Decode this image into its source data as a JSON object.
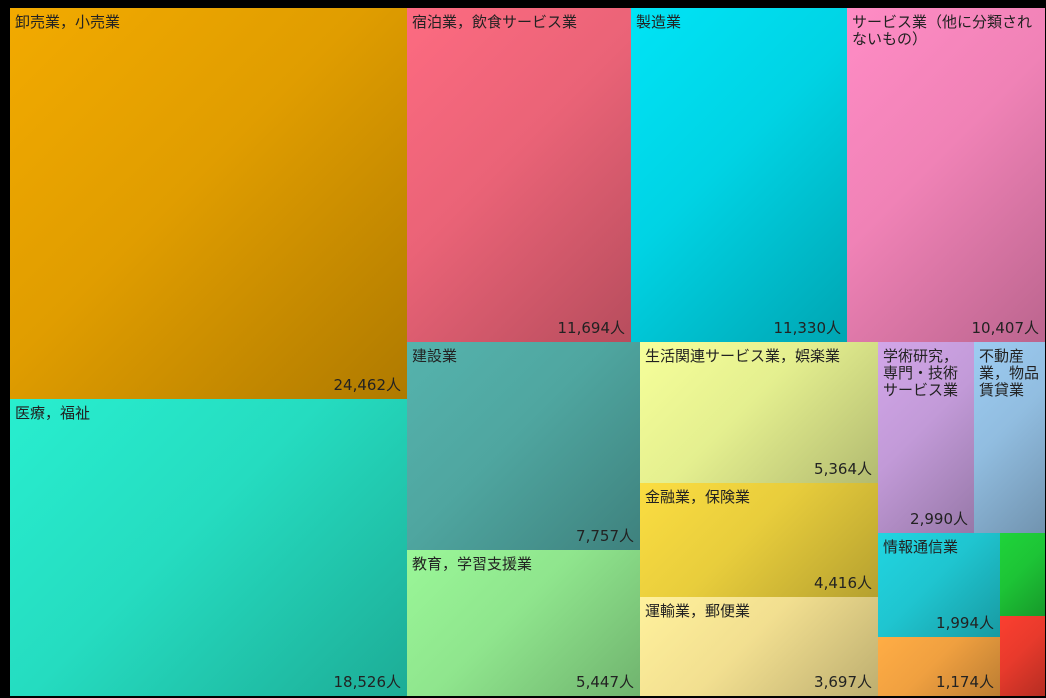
{
  "chart_data": {
    "type": "treemap",
    "unit": "人",
    "items": [
      {
        "label": "卸売業，小売業",
        "value": 24462,
        "display": "24,462人",
        "color": "#e09d00"
      },
      {
        "label": "医療，福祉",
        "value": 18526,
        "display": "18,526人",
        "color": "#25dcc0"
      },
      {
        "label": "宿泊業，飲食サービス業",
        "value": 11694,
        "display": "11,694人",
        "color": "#ea6377"
      },
      {
        "label": "製造業",
        "value": 11330,
        "display": "11,330人",
        "color": "#00d3e4"
      },
      {
        "label": "サービス業（他に分類されないもの）",
        "value": 10407,
        "display": "10,407人",
        "color": "#f082b6"
      },
      {
        "label": "建設業",
        "value": 7757,
        "display": "7,757人",
        "color": "#4fa6a0"
      },
      {
        "label": "教育，学習支援業",
        "value": 5447,
        "display": "5,447人",
        "color": "#8fe58d"
      },
      {
        "label": "生活関連サービス業，娯楽業",
        "value": 5364,
        "display": "5,364人",
        "color": "#e4ef8f"
      },
      {
        "label": "金融業，保険業",
        "value": 4416,
        "display": "4,416人",
        "color": "#e8cd3c"
      },
      {
        "label": "運輸業，郵便業",
        "value": 3697,
        "display": "3,697人",
        "color": "#f2df90"
      },
      {
        "label": "学術研究，専門・技術サービス業",
        "value": 2990,
        "display": "2,990人",
        "color": "#c29ad8"
      },
      {
        "label": "不動産業，物品賃貸業",
        "value": null,
        "display": "",
        "color": "#91bde0"
      },
      {
        "label": "情報通信業",
        "value": 1994,
        "display": "1,994人",
        "color": "#1fc5d0"
      },
      {
        "label": "",
        "value": 1174,
        "display": "1,174人",
        "color": "#f0a040"
      },
      {
        "label": "",
        "value": null,
        "display": "",
        "color": "#1dc436"
      },
      {
        "label": "",
        "value": null,
        "display": "",
        "color": "#e83a2c"
      }
    ]
  }
}
